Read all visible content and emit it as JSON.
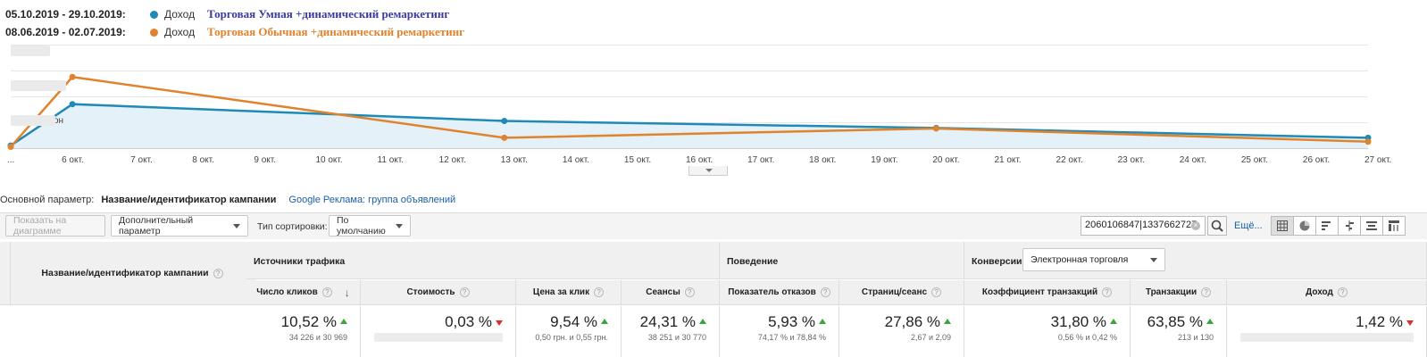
{
  "legend": [
    {
      "dates": "05.10.2019 - 29.10.2019:",
      "metric": "Доход",
      "name": "Торговая Умная +динамический ремаркетинг",
      "color": "#1f8ab5",
      "name_color": "#3a3aa0"
    },
    {
      "dates": "08.06.2019 - 02.07.2019:",
      "metric": "Доход",
      "name": "Торговая Обычная +динамический ремаркетинг",
      "color": "#e0832e",
      "name_color": "#e0832e"
    }
  ],
  "chart_data": {
    "type": "line",
    "x": [
      "...",
      "6 окт.",
      "7 окт.",
      "8 окт.",
      "9 окт.",
      "10 окт.",
      "11 окт.",
      "12 окт.",
      "13 окт.",
      "14 окт.",
      "15 окт.",
      "16 окт.",
      "17 окт.",
      "18 окт.",
      "19 окт.",
      "20 окт.",
      "21 окт.",
      "22 окт.",
      "23 окт.",
      "24 окт.",
      "25 окт.",
      "26 окт.",
      "27 окт."
    ],
    "y_axis_partial_label": "он",
    "ylim": [
      0,
      4
    ],
    "grid": true,
    "series": [
      {
        "name": "Торговая Умная +динамический ремаркетинг",
        "color": "#1f8ab5",
        "fill": "#e4f1f8",
        "points": [
          [
            0,
            0.1
          ],
          [
            1,
            1.7
          ],
          [
            8,
            1.05
          ],
          [
            15,
            0.78
          ],
          [
            22,
            0.4
          ]
        ]
      },
      {
        "name": "Торговая Обычная +динамический ремаркетинг",
        "color": "#e0832e",
        "points": [
          [
            0,
            0.05
          ],
          [
            1,
            2.75
          ],
          [
            8,
            0.4
          ],
          [
            15,
            0.76
          ],
          [
            22,
            0.25
          ]
        ]
      }
    ]
  },
  "dimension": {
    "label": "Основной параметр:",
    "active": "Название/идентификатор кампании",
    "link": "Google Реклама: группа объявлений"
  },
  "toolbar": {
    "plot_button": "Показать на диаграмме",
    "secondary_dim": "Дополнительный параметр",
    "sort_label": "Тип сортировки:",
    "sort_value": "По умолчанию",
    "search_value": "2060106847|1337662727",
    "more": "Ещё..."
  },
  "table": {
    "name_header": "Название/идентификатор кампании",
    "groups": {
      "traffic": "Источники трафика",
      "behavior": "Поведение",
      "conversions": "Конверсии",
      "conv_select": "Электронная торговля"
    },
    "columns": [
      {
        "label": "Число кликов",
        "value": "10,52 %",
        "dir": "up",
        "sub": "34 226 и 30 969"
      },
      {
        "label": "Стоимость",
        "value": "0,03 %",
        "dir": "down",
        "sub": ""
      },
      {
        "label": "Цена за клик",
        "value": "9,54 %",
        "dir": "up",
        "sub": "0,50 грн. и 0,55 грн."
      },
      {
        "label": "Сеансы",
        "value": "24,31 %",
        "dir": "up",
        "sub": "38 251 и 30 770"
      },
      {
        "label": "Показатель отказов",
        "value": "5,93 %",
        "dir": "up",
        "sub": "74,17 % и 78,84 %"
      },
      {
        "label": "Страниц/сеанс",
        "value": "27,86 %",
        "dir": "up",
        "sub": "2,67 и 2,09"
      },
      {
        "label": "Коэффициент транзакций",
        "value": "31,80 %",
        "dir": "up",
        "sub": "0,56 % и 0,42 %"
      },
      {
        "label": "Транзакции",
        "value": "63,85 %",
        "dir": "up",
        "sub": "213 и 130"
      },
      {
        "label": "Доход",
        "value": "1,42 %",
        "dir": "down",
        "sub": ""
      }
    ]
  },
  "icons": {
    "help": "?",
    "sort": "↓",
    "clear": "×"
  }
}
